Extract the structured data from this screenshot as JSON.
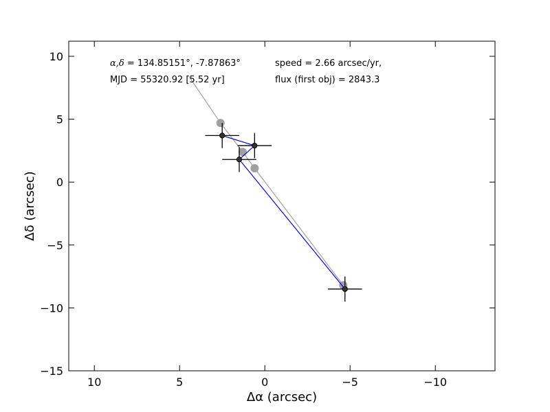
{
  "chart_data": {
    "type": "scatter",
    "xlabel": "Δα (arcsec)",
    "ylabel": "Δδ (arcsec)",
    "xlim": [
      11.5,
      -13.5
    ],
    "ylim": [
      -15,
      11.2
    ],
    "xticks": [
      10,
      5,
      0,
      -5,
      -10
    ],
    "xtick_labels": [
      "10",
      "5",
      "0",
      "−5",
      "−10"
    ],
    "yticks": [
      10,
      5,
      0,
      -5,
      -10,
      -15
    ],
    "ytick_labels": [
      "10",
      "5",
      "0",
      "−5",
      "−10",
      "−15"
    ],
    "grid": false,
    "annotations": {
      "coord_label": "α,δ",
      "coord_value": " = 134.85151°, -7.87863°",
      "mjd": "MJD = 55320.92 [5.52 yr]",
      "speed": "speed = 2.66 arcsec/yr,",
      "flux": "flux (first obj) = 2843.3"
    },
    "series": [
      {
        "kind": "model-track",
        "color": "#a0a0a0",
        "line_x": [
          4.5,
          2.6,
          1.3,
          0.6,
          -4.6
        ],
        "line_y": [
          8.5,
          4.7,
          2.4,
          1.1,
          -8.2
        ],
        "markers_x": [
          2.6,
          1.3,
          0.6,
          -4.6
        ],
        "markers_y": [
          4.7,
          2.4,
          1.1,
          -8.2
        ]
      },
      {
        "kind": "measurements",
        "color": "#0000ff",
        "marker_color": "#000000",
        "x": [
          2.5,
          0.6,
          1.5,
          -4.7
        ],
        "y": [
          3.7,
          2.9,
          1.8,
          -8.5
        ],
        "xerr": [
          1.0,
          1.0,
          1.0,
          1.0
        ],
        "yerr": [
          1.0,
          1.0,
          1.0,
          1.0
        ]
      }
    ]
  }
}
